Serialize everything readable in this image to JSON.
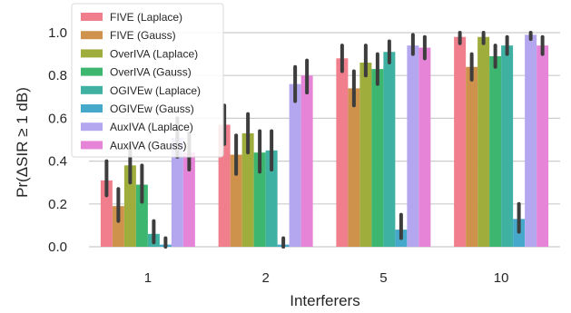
{
  "chart_data": {
    "type": "bar",
    "xlabel": "Interferers",
    "ylabel": "Pr(ΔSIR ≥ 1 dB)",
    "categories": [
      "1",
      "2",
      "5",
      "10"
    ],
    "ylim": [
      0,
      1.05
    ],
    "yticks": [
      "0.0",
      "0.2",
      "0.4",
      "0.6",
      "0.8",
      "1.0"
    ],
    "grid": "horizontal",
    "legend_position": "top-left",
    "series": [
      {
        "name": "FIVE (Laplace)",
        "color": "#f07e8c",
        "values": [
          0.31,
          0.57,
          0.88,
          0.98
        ],
        "ci": [
          [
            0.24,
            0.4
          ],
          [
            0.48,
            0.66
          ],
          [
            0.82,
            0.94
          ],
          [
            0.95,
            1.0
          ]
        ]
      },
      {
        "name": "FIVE (Gauss)",
        "color": "#cf924c",
        "values": [
          0.19,
          0.43,
          0.74,
          0.84
        ],
        "ci": [
          [
            0.12,
            0.27
          ],
          [
            0.34,
            0.52
          ],
          [
            0.66,
            0.82
          ],
          [
            0.78,
            0.9
          ]
        ]
      },
      {
        "name": "OverIVA (Laplace)",
        "color": "#9fad3c",
        "values": [
          0.38,
          0.53,
          0.86,
          0.98
        ],
        "ci": [
          [
            0.3,
            0.47
          ],
          [
            0.44,
            0.62
          ],
          [
            0.8,
            0.94
          ],
          [
            0.95,
            1.0
          ]
        ]
      },
      {
        "name": "OverIVA (Gauss)",
        "color": "#3db66f",
        "values": [
          0.29,
          0.44,
          0.83,
          0.89
        ],
        "ci": [
          [
            0.21,
            0.38
          ],
          [
            0.35,
            0.54
          ],
          [
            0.76,
            0.9
          ],
          [
            0.84,
            0.94
          ]
        ]
      },
      {
        "name": "OGIVEw (Laplace)",
        "color": "#3fb1a2",
        "values": [
          0.06,
          0.45,
          0.91,
          0.94
        ],
        "ci": [
          [
            0.02,
            0.12
          ],
          [
            0.36,
            0.54
          ],
          [
            0.86,
            0.96
          ],
          [
            0.9,
            0.98
          ]
        ]
      },
      {
        "name": "OGIVEw (Gauss)",
        "color": "#46a8cb",
        "values": [
          0.01,
          0.01,
          0.08,
          0.13
        ],
        "ci": [
          [
            0.0,
            0.04
          ],
          [
            0.0,
            0.04
          ],
          [
            0.04,
            0.15
          ],
          [
            0.07,
            0.2
          ]
        ]
      },
      {
        "name": "AuxIVA (Laplace)",
        "color": "#b4a7ef",
        "values": [
          0.51,
          0.76,
          0.94,
          0.99
        ],
        "ci": [
          [
            0.42,
            0.6
          ],
          [
            0.68,
            0.84
          ],
          [
            0.9,
            0.99
          ],
          [
            0.97,
            1.0
          ]
        ]
      },
      {
        "name": "AuxIVA (Gauss)",
        "color": "#e685d8",
        "values": [
          0.44,
          0.8,
          0.93,
          0.94
        ],
        "ci": [
          [
            0.36,
            0.53
          ],
          [
            0.72,
            0.87
          ],
          [
            0.88,
            0.98
          ],
          [
            0.9,
            0.98
          ]
        ]
      }
    ]
  }
}
